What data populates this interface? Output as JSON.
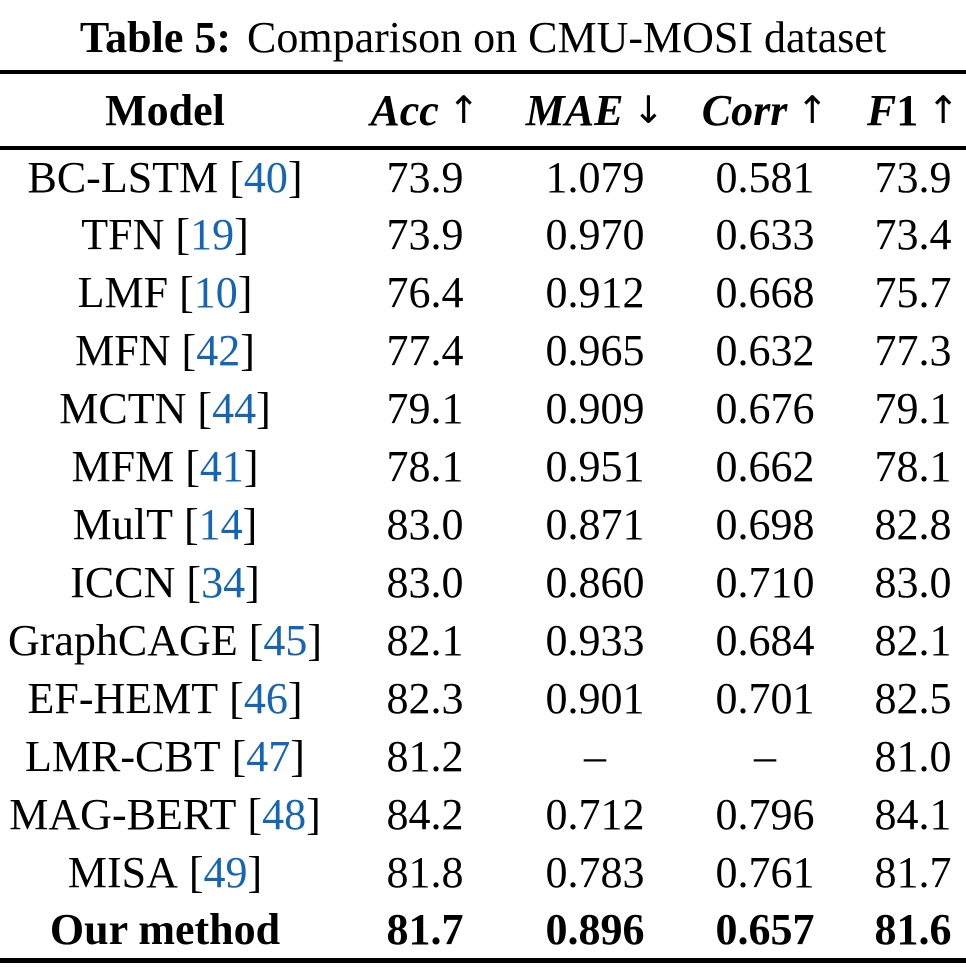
{
  "caption": {
    "label": "Table 5:",
    "text": "Comparison on CMU-MOSI dataset"
  },
  "table": {
    "columns": [
      {
        "label": "Model"
      },
      {
        "label": "Acc",
        "arrow": "↑"
      },
      {
        "label": "MAE",
        "arrow": "↓"
      },
      {
        "label": "Corr",
        "arrow": "↑"
      },
      {
        "label": "F",
        "label2": "1",
        "arrow": "↑"
      }
    ],
    "rows": [
      {
        "model": "BC-LSTM",
        "cite": "40",
        "acc": "73.9",
        "mae": "1.079",
        "corr": "0.581",
        "f1": "73.9",
        "bold": false
      },
      {
        "model": "TFN",
        "cite": "19",
        "acc": "73.9",
        "mae": "0.970",
        "corr": "0.633",
        "f1": "73.4",
        "bold": false
      },
      {
        "model": "LMF",
        "cite": "10",
        "acc": "76.4",
        "mae": "0.912",
        "corr": "0.668",
        "f1": "75.7",
        "bold": false
      },
      {
        "model": "MFN",
        "cite": "42",
        "acc": "77.4",
        "mae": "0.965",
        "corr": "0.632",
        "f1": "77.3",
        "bold": false
      },
      {
        "model": "MCTN",
        "cite": "44",
        "acc": "79.1",
        "mae": "0.909",
        "corr": "0.676",
        "f1": "79.1",
        "bold": false
      },
      {
        "model": "MFM",
        "cite": "41",
        "acc": "78.1",
        "mae": "0.951",
        "corr": "0.662",
        "f1": "78.1",
        "bold": false
      },
      {
        "model": "MulT",
        "cite": "14",
        "acc": "83.0",
        "mae": "0.871",
        "corr": "0.698",
        "f1": "82.8",
        "bold": false
      },
      {
        "model": "ICCN",
        "cite": "34",
        "acc": "83.0",
        "mae": "0.860",
        "corr": "0.710",
        "f1": "83.0",
        "bold": false
      },
      {
        "model": "GraphCAGE",
        "cite": "45",
        "acc": "82.1",
        "mae": "0.933",
        "corr": "0.684",
        "f1": "82.1",
        "bold": false
      },
      {
        "model": "EF-HEMT",
        "cite": "46",
        "acc": "82.3",
        "mae": "0.901",
        "corr": "0.701",
        "f1": "82.5",
        "bold": false
      },
      {
        "model": "LMR-CBT",
        "cite": "47",
        "acc": "81.2",
        "mae": "–",
        "corr": "–",
        "f1": "81.0",
        "bold": false
      },
      {
        "model": "MAG-BERT",
        "cite": "48",
        "acc": "84.2",
        "mae": "0.712",
        "corr": "0.796",
        "f1": "84.1",
        "bold": false
      },
      {
        "model": "MISA",
        "cite": "49",
        "acc": "81.8",
        "mae": "0.783",
        "corr": "0.761",
        "f1": "81.7",
        "bold": false
      },
      {
        "model": "Our method",
        "cite": "",
        "acc": "81.7",
        "mae": "0.896",
        "corr": "0.657",
        "f1": "81.6",
        "bold": true
      }
    ]
  },
  "colors": {
    "citation_link": "#1565b6",
    "text": "#000000",
    "rule": "#000000",
    "background": "#ffffff"
  }
}
